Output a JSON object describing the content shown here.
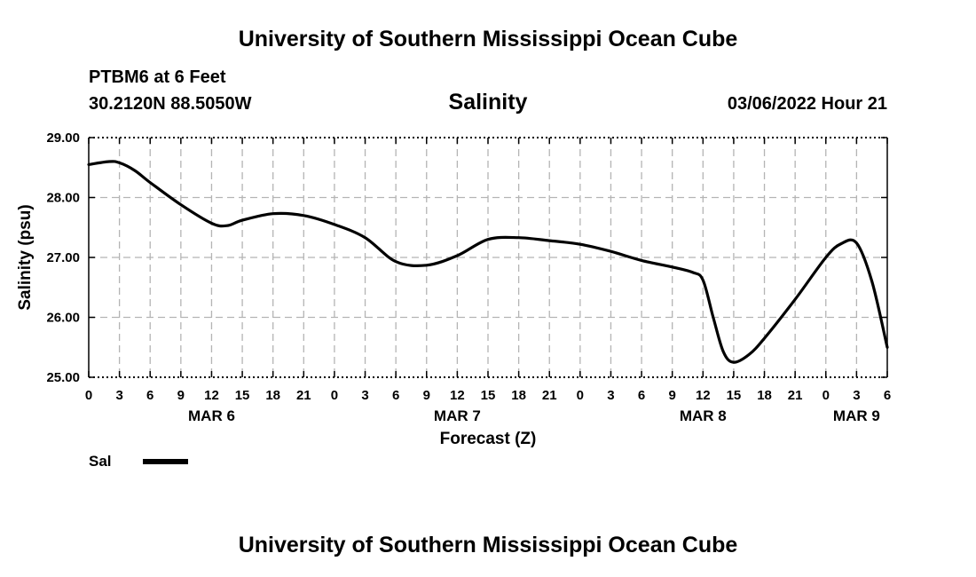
{
  "header": {
    "title": "University of Southern Mississippi Ocean Cube",
    "station": "PTBM6 at 6 Feet",
    "coords": "30.2120N  88.5050W",
    "chart_title": "Salinity",
    "datetime": "03/06/2022 Hour 21"
  },
  "footer": {
    "title": "University of Southern Mississippi Ocean Cube"
  },
  "legend": {
    "label": "Sal"
  },
  "chart_data": {
    "type": "line",
    "title": "Salinity",
    "xlabel": "Forecast (Z)",
    "ylabel": "Salinity (psu)",
    "xlim": [
      0,
      78
    ],
    "ylim": [
      25.0,
      29.0
    ],
    "grid": true,
    "x_ticks": [
      0,
      3,
      6,
      9,
      12,
      15,
      18,
      21,
      24,
      27,
      30,
      33,
      36,
      39,
      42,
      45,
      48,
      51,
      54,
      57,
      60,
      63,
      66,
      69,
      72,
      75,
      78
    ],
    "x_tick_labels": [
      "0",
      "3",
      "6",
      "9",
      "12",
      "15",
      "18",
      "21",
      "0",
      "3",
      "6",
      "9",
      "12",
      "15",
      "18",
      "21",
      "0",
      "3",
      "6",
      "9",
      "12",
      "15",
      "18",
      "21",
      "0",
      "3",
      "6"
    ],
    "y_ticks": [
      25.0,
      26.0,
      27.0,
      28.0,
      29.0
    ],
    "y_tick_labels": [
      "25.00",
      "26.00",
      "27.00",
      "28.00",
      "29.00"
    ],
    "day_labels": [
      {
        "x": 12,
        "label": "MAR 6"
      },
      {
        "x": 36,
        "label": "MAR 7"
      },
      {
        "x": 60,
        "label": "MAR 8"
      },
      {
        "x": 75,
        "label": "MAR 9"
      }
    ],
    "series": [
      {
        "name": "Sal",
        "color": "#000000",
        "x": [
          0,
          2,
          3,
          4.5,
          6,
          9,
          12,
          13.5,
          15,
          18,
          21,
          24,
          27,
          30,
          33,
          36,
          39,
          42,
          45,
          48,
          51,
          54,
          57,
          59,
          60,
          61,
          62,
          63,
          64.5,
          66,
          69,
          72,
          73.5,
          75,
          76.5,
          78
        ],
        "y": [
          28.55,
          28.6,
          28.58,
          28.45,
          28.25,
          27.88,
          27.57,
          27.53,
          27.62,
          27.73,
          27.7,
          27.55,
          27.33,
          26.93,
          26.87,
          27.03,
          27.3,
          27.33,
          27.28,
          27.22,
          27.1,
          26.95,
          26.84,
          26.75,
          26.62,
          26.0,
          25.42,
          25.25,
          25.38,
          25.65,
          26.3,
          27.0,
          27.23,
          27.24,
          26.6,
          25.5
        ]
      }
    ]
  }
}
